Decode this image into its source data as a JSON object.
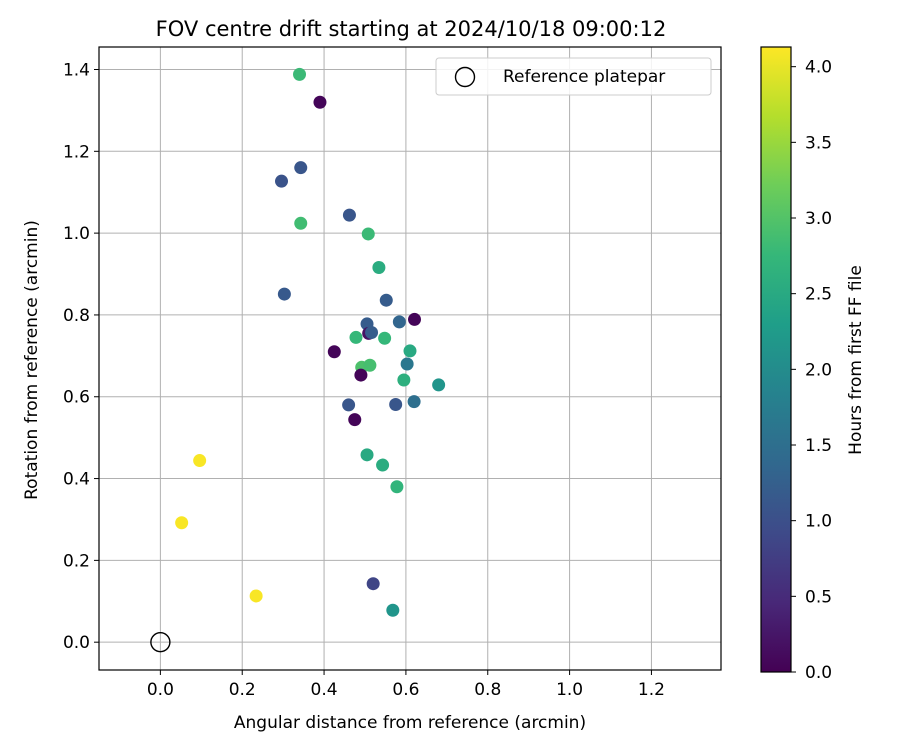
{
  "chart_data": {
    "type": "scatter",
    "title": "FOV centre drift starting at 2024/10/18 09:00:12",
    "xlabel": "Angular distance from reference (arcmin)",
    "ylabel": "Rotation from reference (arcmin)",
    "xlim": [
      -0.15,
      1.37
    ],
    "ylim": [
      -0.068,
      1.455
    ],
    "xticks": [
      0.0,
      0.2,
      0.4,
      0.6,
      0.8,
      1.0,
      1.2
    ],
    "xtick_labels": [
      "0.0",
      "0.2",
      "0.4",
      "0.6",
      "0.8",
      "1.0",
      "1.2"
    ],
    "yticks": [
      0.0,
      0.2,
      0.4,
      0.6,
      0.8,
      1.0,
      1.2,
      1.4
    ],
    "ytick_labels": [
      "0.0",
      "0.2",
      "0.4",
      "0.6",
      "0.8",
      "1.0",
      "1.2",
      "1.4"
    ],
    "grid": true,
    "legend": {
      "placement": "upper-right",
      "entries": [
        {
          "label": "Reference platepar",
          "marker": "open-circle"
        }
      ]
    },
    "reference_point": {
      "x": 0.0,
      "y": 0.0
    },
    "colorbar": {
      "label": "Hours from first FF file",
      "colormap": "viridis",
      "range": [
        0.0,
        4.13
      ],
      "ticks": [
        0.0,
        0.5,
        1.0,
        1.5,
        2.0,
        2.5,
        3.0,
        3.5,
        4.0
      ],
      "tick_labels": [
        "0.0",
        "0.5",
        "1.0",
        "1.5",
        "2.0",
        "2.5",
        "3.0",
        "3.5",
        "4.0"
      ]
    },
    "points": [
      {
        "x": 0.34,
        "y": 1.388,
        "hours": 2.8
      },
      {
        "x": 0.39,
        "y": 1.32,
        "hours": 0.05
      },
      {
        "x": 0.343,
        "y": 1.16,
        "hours": 1.1
      },
      {
        "x": 0.296,
        "y": 1.127,
        "hours": 1.05
      },
      {
        "x": 0.343,
        "y": 1.024,
        "hours": 2.85
      },
      {
        "x": 0.462,
        "y": 1.044,
        "hours": 1.1
      },
      {
        "x": 0.508,
        "y": 0.998,
        "hours": 2.8
      },
      {
        "x": 0.534,
        "y": 0.916,
        "hours": 2.55
      },
      {
        "x": 0.303,
        "y": 0.851,
        "hours": 1.15
      },
      {
        "x": 0.552,
        "y": 0.836,
        "hours": 1.2
      },
      {
        "x": 0.505,
        "y": 0.778,
        "hours": 1.2
      },
      {
        "x": 0.584,
        "y": 0.783,
        "hours": 1.35
      },
      {
        "x": 0.621,
        "y": 0.789,
        "hours": 0.05
      },
      {
        "x": 0.509,
        "y": 0.755,
        "hours": 0.2
      },
      {
        "x": 0.516,
        "y": 0.757,
        "hours": 1.2
      },
      {
        "x": 0.478,
        "y": 0.745,
        "hours": 2.75
      },
      {
        "x": 0.548,
        "y": 0.743,
        "hours": 2.75
      },
      {
        "x": 0.425,
        "y": 0.71,
        "hours": 0.05
      },
      {
        "x": 0.61,
        "y": 0.712,
        "hours": 2.5
      },
      {
        "x": 0.603,
        "y": 0.68,
        "hours": 1.65
      },
      {
        "x": 0.492,
        "y": 0.672,
        "hours": 2.95
      },
      {
        "x": 0.512,
        "y": 0.677,
        "hours": 2.9
      },
      {
        "x": 0.49,
        "y": 0.653,
        "hours": 0.05
      },
      {
        "x": 0.595,
        "y": 0.641,
        "hours": 2.6
      },
      {
        "x": 0.68,
        "y": 0.629,
        "hours": 2.15
      },
      {
        "x": 0.46,
        "y": 0.58,
        "hours": 1.1
      },
      {
        "x": 0.575,
        "y": 0.581,
        "hours": 1.1
      },
      {
        "x": 0.62,
        "y": 0.588,
        "hours": 1.5
      },
      {
        "x": 0.475,
        "y": 0.544,
        "hours": 0.05
      },
      {
        "x": 0.505,
        "y": 0.458,
        "hours": 2.5
      },
      {
        "x": 0.543,
        "y": 0.433,
        "hours": 2.55
      },
      {
        "x": 0.578,
        "y": 0.38,
        "hours": 2.7
      },
      {
        "x": 0.52,
        "y": 0.143,
        "hours": 0.85
      },
      {
        "x": 0.568,
        "y": 0.078,
        "hours": 2.15
      },
      {
        "x": 0.096,
        "y": 0.444,
        "hours": 4.1
      },
      {
        "x": 0.052,
        "y": 0.292,
        "hours": 4.1
      },
      {
        "x": 0.234,
        "y": 0.113,
        "hours": 4.1
      }
    ]
  }
}
